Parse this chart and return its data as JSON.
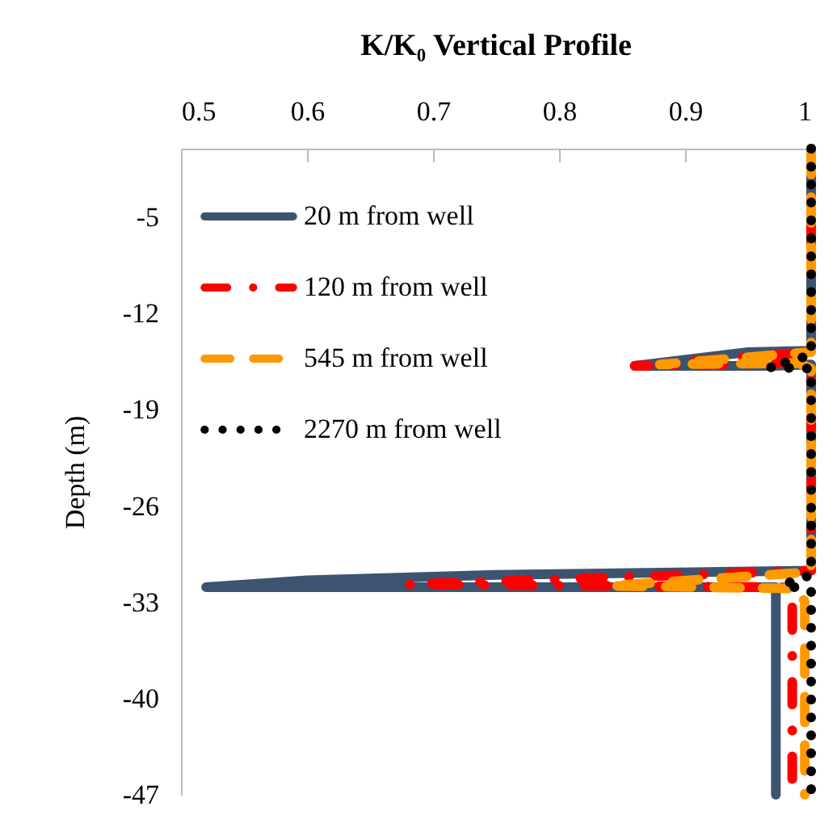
{
  "chart_data": {
    "type": "line",
    "title": "K/K₀ Vertical Profile",
    "ylabel": "Depth (m)",
    "xlim": [
      0.5,
      1
    ],
    "xticks": [
      0.5,
      0.6,
      0.7,
      0.8,
      0.9,
      1
    ],
    "ylim": [
      -47,
      0
    ],
    "yticks": [
      -47,
      -40,
      -33,
      -26,
      -19,
      -12,
      -5
    ],
    "grid": false,
    "legend": "top left",
    "marker": "none",
    "series": [
      {
        "name": "20 m from well",
        "color": "#3d5470",
        "line_style": "solid",
        "x": [
          1,
          1,
          0.95,
          0.86,
          0.97,
          1,
          1,
          0.75,
          0.6,
          0.52,
          0.972,
          0.972
        ],
        "values": [
          0,
          -14.7,
          -14.8,
          -15.8,
          -15.8,
          -15.7,
          -30.7,
          -31.0,
          -31.4,
          -31.9,
          -31.9,
          -47
        ]
      },
      {
        "name": "120 m from well",
        "color": "#ff0000",
        "line_style": "dashdot",
        "x": [
          1,
          1,
          0.86,
          0.99,
          1,
          1,
          0.68,
          0.98,
          0.985,
          0.985
        ],
        "values": [
          0,
          -14.8,
          -15.8,
          -15.6,
          -16,
          -30.7,
          -31.7,
          -31.9,
          -32.5,
          -47
        ]
      },
      {
        "name": "545 m from well",
        "color": "#ff9900",
        "line_style": "dashed",
        "x": [
          1,
          1,
          0.88,
          0.99,
          1,
          1,
          0.84,
          0.99,
          0.995,
          0.995
        ],
        "values": [
          0,
          -14.8,
          -15.7,
          -15.6,
          -16,
          -30.8,
          -31.8,
          -32,
          -33,
          -47
        ]
      },
      {
        "name": "2270 m from well",
        "color": "#000000",
        "line_style": "dotted",
        "x": [
          1,
          1,
          0.967,
          1,
          1,
          0.978,
          1,
          1
        ],
        "values": [
          0,
          -15,
          -15.9,
          -16,
          -31,
          -31.7,
          -32.2,
          -47
        ]
      }
    ]
  }
}
